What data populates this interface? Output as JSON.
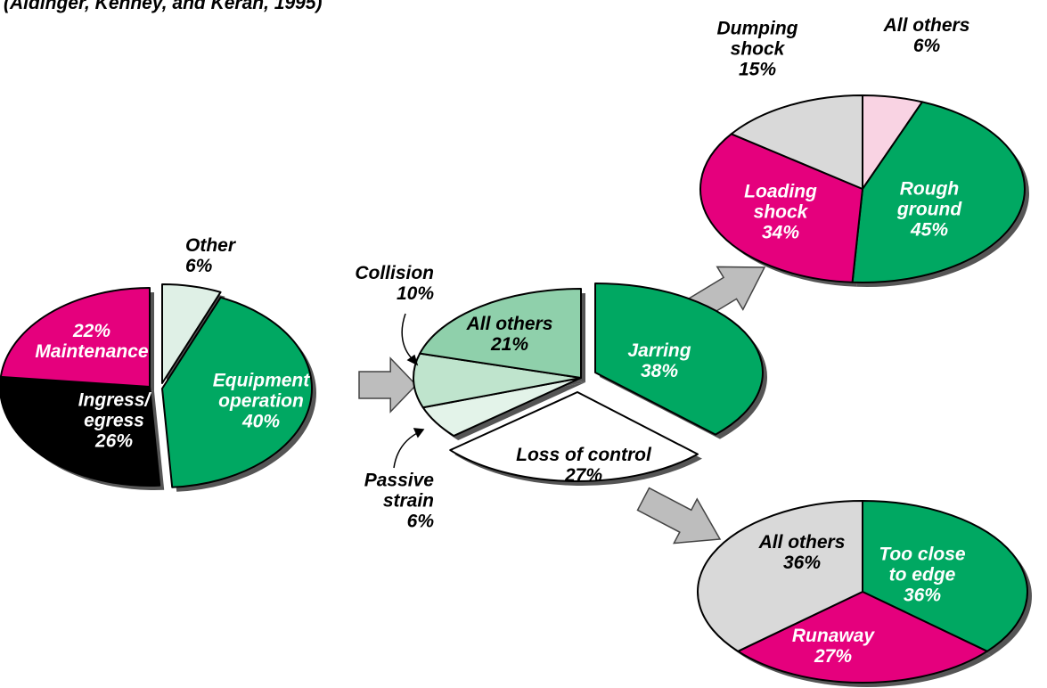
{
  "header": {
    "source": "(Aldinger, Kenney, and Keran, 1995)"
  },
  "chart_data": [
    {
      "type": "pie",
      "categories": [
        "Other",
        "Equipment operation",
        "Ingress/ egress",
        "Maintenance"
      ],
      "values": [
        6,
        40,
        26,
        22
      ],
      "value_labels": [
        "6%",
        "40%",
        "26%",
        "22%"
      ],
      "colors": [
        "#dff0e6",
        "#00a862",
        "#000000",
        "#e5007d"
      ]
    },
    {
      "type": "pie",
      "categories": [
        "Jarring",
        "Loss of control",
        "Passive strain",
        "Collision",
        "All others"
      ],
      "values": [
        38,
        27,
        6,
        10,
        21
      ],
      "value_labels": [
        "38%",
        "27%",
        "6%",
        "10%",
        "21%"
      ],
      "colors": [
        "#00a862",
        "#ffffff",
        "#e3f3e9",
        "#bfe4cd",
        "#8fd0ab"
      ]
    },
    {
      "type": "pie",
      "categories": [
        "All others",
        "Rough ground",
        "Loading shock",
        "Dumping shock"
      ],
      "values": [
        6,
        45,
        34,
        15
      ],
      "value_labels": [
        "6%",
        "45%",
        "34%",
        "15%"
      ],
      "colors": [
        "#f9d3e3",
        "#00a862",
        "#e5007d",
        "#d9d9d9"
      ]
    },
    {
      "type": "pie",
      "categories": [
        "Too close to edge",
        "Runaway",
        "All others"
      ],
      "values": [
        36,
        27,
        36
      ],
      "value_labels": [
        "36%",
        "27%",
        "36%"
      ],
      "colors": [
        "#00a862",
        "#e5007d",
        "#d9d9d9"
      ]
    }
  ]
}
